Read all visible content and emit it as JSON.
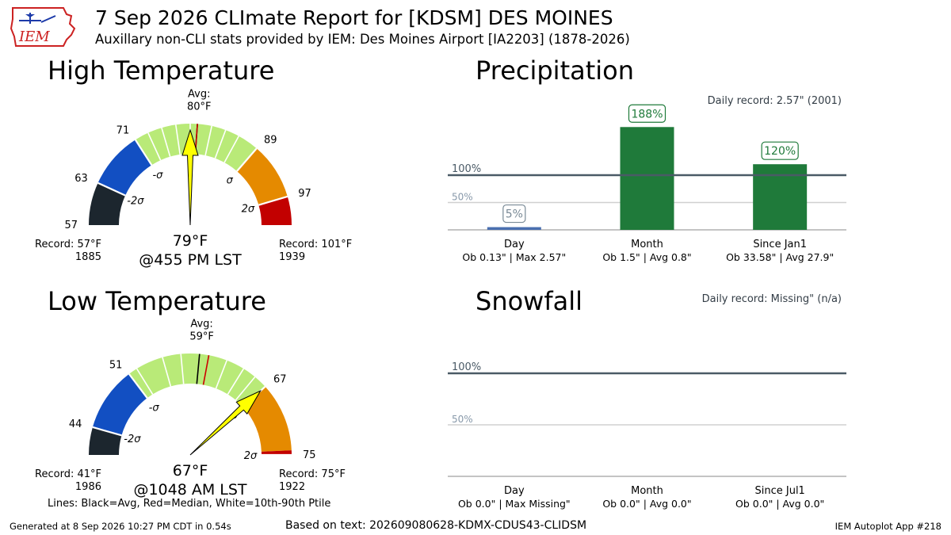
{
  "header": {
    "title": "7 Sep 2026 CLImate Report for [KDSM] DES MOINES",
    "subtitle": "Auxillary non-CLI stats provided by IEM: Des Moines Airport [IA2203] (1878-2026)",
    "logo_text": "IEM"
  },
  "colors": {
    "record_low": "#1c262e",
    "very_low": "#124fc2",
    "normal": "#b9ea78",
    "above": "#e58a00",
    "very_high": "#c20000",
    "arrow": "#ffff00",
    "bar": "#1f7a3a",
    "ref_line": "#4a5a66",
    "ref_half": "#d0d0d0",
    "pct_box_edge_low": "#7a8a96"
  },
  "chart_data": [
    {
      "type": "gauge",
      "title": "High Temperature",
      "range": [
        57,
        101
      ],
      "avg": 80,
      "median": 80,
      "avg_label": "Avg:",
      "avg_value_label": "80°F",
      "observed": 79,
      "observed_label": "79°F",
      "observed_time": "@455 PM LST",
      "boundaries": [
        57,
        63,
        71,
        89,
        97,
        101
      ],
      "boundary_labels": [
        "57",
        "63",
        "71",
        "89",
        "97"
      ],
      "sigma_labels": [
        "-2σ",
        "-σ",
        "σ",
        "2σ"
      ],
      "sigma_values": [
        63,
        71,
        89,
        97
      ],
      "percentile_ticks": [
        73,
        75,
        77,
        79,
        82,
        84,
        86
      ],
      "record_low_label": "Record: 57°F",
      "record_low_year": "1885",
      "record_high_label": "Record: 101°F",
      "record_high_year": "1939"
    },
    {
      "type": "gauge",
      "title": "Low Temperature",
      "range": [
        41,
        75
      ],
      "avg": 59,
      "median": 60,
      "avg_label": "Avg:",
      "avg_value_label": "59°F",
      "observed": 67,
      "observed_label": "67°F",
      "observed_time": "@1048 AM LST",
      "boundaries": [
        41,
        44,
        51,
        67,
        74.5,
        75
      ],
      "boundary_labels": [
        "44",
        "51",
        "67",
        "75"
      ],
      "sigma_labels": [
        "-2σ",
        "-σ",
        "σ",
        "2σ"
      ],
      "sigma_values": [
        44,
        51,
        67,
        75
      ],
      "percentile_ticks": [
        52,
        55,
        57,
        62,
        64,
        65.5
      ],
      "record_low_label": "Record: 41°F",
      "record_low_year": "1986",
      "record_high_label": "Record: 75°F",
      "record_high_year": "1922"
    },
    {
      "type": "bar",
      "title": "Precipitation",
      "record_text": "Daily record: 2.57\" (2001)",
      "categories": [
        "Day",
        "Month",
        "Since Jan1"
      ],
      "values": [
        5,
        188,
        120
      ],
      "value_labels": [
        "5%",
        "188%",
        "120%"
      ],
      "details": [
        "Ob 0.13\" | Max 2.57\"",
        "Ob 1.5\" | Avg 0.8\"",
        "Ob 33.58\" | Avg 27.9\""
      ],
      "ref_labels": [
        "100%",
        "50%"
      ],
      "ylim": [
        0,
        200
      ]
    },
    {
      "type": "bar",
      "title": "Snowfall",
      "record_text": "Daily record: Missing\" (n/a)",
      "categories": [
        "Day",
        "Month",
        "Since Jul1"
      ],
      "values": [
        0,
        0,
        0
      ],
      "value_labels": [],
      "details": [
        "Ob 0.0\" | Max Missing\"",
        "Ob 0.0\" | Avg 0.0\"",
        "Ob 0.0\" | Avg 0.0\""
      ],
      "ref_labels": [
        "100%",
        "50%"
      ],
      "ylim": [
        0,
        200
      ]
    }
  ],
  "legend_note": "Lines: Black=Avg, Red=Median, White=10th-90th Ptile",
  "footer": {
    "generated": "Generated at 8 Sep 2026 10:27 PM CDT in 0.54s",
    "based_on": "Based on text: 202609080628-KDMX-CDUS43-CLIDSM",
    "app": "IEM Autoplot App #218"
  }
}
